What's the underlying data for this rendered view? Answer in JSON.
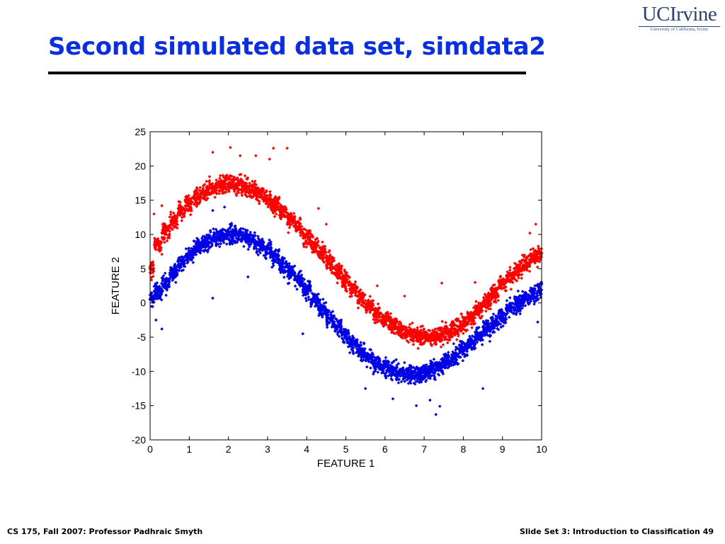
{
  "slide": {
    "title": "Second simulated data set, simdata2",
    "footer_left": "CS 175, Fall 2007: Professor Padhraic Smyth",
    "footer_right": "Slide Set 3: Introduction to Classification 49"
  },
  "logo": {
    "wordmark": "UCIrvine",
    "subtitle": "University of California, Irvine"
  },
  "colors": {
    "title": "#0a2ee0",
    "class_red": "#ff0000",
    "class_blue": "#0000e6",
    "logo": "#2b4370"
  },
  "chart_data": {
    "type": "scatter",
    "title": "",
    "xlabel": "FEATURE 1",
    "ylabel": "FEATURE 2",
    "xlim": [
      0,
      10
    ],
    "ylim": [
      -20,
      25
    ],
    "xticks": [
      0,
      1,
      2,
      3,
      4,
      5,
      6,
      7,
      8,
      9,
      10
    ],
    "yticks": [
      -20,
      -15,
      -10,
      -5,
      0,
      5,
      10,
      15,
      20,
      25
    ],
    "grid": false,
    "series": [
      {
        "color": "#ff0000",
        "points": [
          [
            0.0,
            5.0
          ],
          [
            0.2,
            8.5
          ],
          [
            0.4,
            10.5
          ],
          [
            0.6,
            12.0
          ],
          [
            0.8,
            13.5
          ],
          [
            1.0,
            14.5
          ],
          [
            1.2,
            15.5
          ],
          [
            1.4,
            16.2
          ],
          [
            1.6,
            16.8
          ],
          [
            1.8,
            17.2
          ],
          [
            2.0,
            17.5
          ],
          [
            2.2,
            17.3
          ],
          [
            2.4,
            17.0
          ],
          [
            2.6,
            16.6
          ],
          [
            2.8,
            16.0
          ],
          [
            3.0,
            15.2
          ],
          [
            3.2,
            14.3
          ],
          [
            3.4,
            13.3
          ],
          [
            3.6,
            12.2
          ],
          [
            3.8,
            11.0
          ],
          [
            4.0,
            9.8
          ],
          [
            4.2,
            8.5
          ],
          [
            4.4,
            7.2
          ],
          [
            4.6,
            5.8
          ],
          [
            4.8,
            4.5
          ],
          [
            5.0,
            3.2
          ],
          [
            5.2,
            1.9
          ],
          [
            5.4,
            0.7
          ],
          [
            5.6,
            -0.5
          ],
          [
            5.8,
            -1.5
          ],
          [
            6.0,
            -2.4
          ],
          [
            6.2,
            -3.2
          ],
          [
            6.4,
            -3.9
          ],
          [
            6.6,
            -4.4
          ],
          [
            6.8,
            -4.8
          ],
          [
            7.0,
            -5.0
          ],
          [
            7.2,
            -5.0
          ],
          [
            7.4,
            -4.8
          ],
          [
            7.6,
            -4.4
          ],
          [
            7.8,
            -3.8
          ],
          [
            8.0,
            -3.0
          ],
          [
            8.2,
            -2.1
          ],
          [
            8.4,
            -1.0
          ],
          [
            8.6,
            0.2
          ],
          [
            8.8,
            1.5
          ],
          [
            9.0,
            2.8
          ],
          [
            9.2,
            3.9
          ],
          [
            9.4,
            4.9
          ],
          [
            9.6,
            5.8
          ],
          [
            9.8,
            6.6
          ],
          [
            10.0,
            7.2
          ],
          [
            1.6,
            22.0
          ],
          [
            2.05,
            22.7
          ],
          [
            2.3,
            21.5
          ],
          [
            2.7,
            21.5
          ],
          [
            3.05,
            21.0
          ],
          [
            3.15,
            22.6
          ],
          [
            3.5,
            22.6
          ],
          [
            7.45,
            2.9
          ],
          [
            0.3,
            14.2
          ],
          [
            0.1,
            13.0
          ],
          [
            9.85,
            11.5
          ],
          [
            9.7,
            10.2
          ],
          [
            5.8,
            2.5
          ],
          [
            6.5,
            1.0
          ],
          [
            8.3,
            3.0
          ],
          [
            4.5,
            11.5
          ],
          [
            4.3,
            13.8
          ]
        ]
      },
      {
        "color": "#0000e6",
        "points": [
          [
            0.0,
            0.5
          ],
          [
            0.2,
            1.5
          ],
          [
            0.4,
            3.0
          ],
          [
            0.6,
            4.5
          ],
          [
            0.8,
            5.8
          ],
          [
            1.0,
            7.0
          ],
          [
            1.2,
            8.0
          ],
          [
            1.4,
            8.8
          ],
          [
            1.6,
            9.4
          ],
          [
            1.8,
            9.8
          ],
          [
            2.0,
            10.0
          ],
          [
            2.2,
            10.0
          ],
          [
            2.4,
            9.7
          ],
          [
            2.6,
            9.2
          ],
          [
            2.8,
            8.6
          ],
          [
            3.0,
            7.8
          ],
          [
            3.2,
            6.8
          ],
          [
            3.4,
            5.7
          ],
          [
            3.6,
            4.5
          ],
          [
            3.8,
            3.2
          ],
          [
            4.0,
            1.9
          ],
          [
            4.2,
            0.5
          ],
          [
            4.4,
            -0.9
          ],
          [
            4.6,
            -2.2
          ],
          [
            4.8,
            -3.5
          ],
          [
            5.0,
            -4.8
          ],
          [
            5.2,
            -6.0
          ],
          [
            5.4,
            -7.1
          ],
          [
            5.6,
            -8.0
          ],
          [
            5.8,
            -8.8
          ],
          [
            6.0,
            -9.4
          ],
          [
            6.2,
            -9.9
          ],
          [
            6.4,
            -10.2
          ],
          [
            6.6,
            -10.4
          ],
          [
            6.8,
            -10.4
          ],
          [
            7.0,
            -10.2
          ],
          [
            7.2,
            -9.8
          ],
          [
            7.4,
            -9.2
          ],
          [
            7.6,
            -8.5
          ],
          [
            7.8,
            -7.7
          ],
          [
            8.0,
            -6.8
          ],
          [
            8.2,
            -5.8
          ],
          [
            8.4,
            -4.8
          ],
          [
            8.6,
            -3.8
          ],
          [
            8.8,
            -2.8
          ],
          [
            9.0,
            -1.9
          ],
          [
            9.2,
            -1.0
          ],
          [
            9.4,
            -0.2
          ],
          [
            9.6,
            0.6
          ],
          [
            9.8,
            1.3
          ],
          [
            10.0,
            1.9
          ],
          [
            7.3,
            -16.3
          ],
          [
            6.8,
            -15.0
          ],
          [
            7.15,
            -14.2
          ],
          [
            7.4,
            -15.1
          ],
          [
            0.3,
            -3.8
          ],
          [
            0.15,
            -2.5
          ],
          [
            1.6,
            0.7
          ],
          [
            2.5,
            3.8
          ],
          [
            3.9,
            -4.5
          ],
          [
            5.5,
            -12.5
          ],
          [
            6.2,
            -14.0
          ],
          [
            8.5,
            -12.5
          ],
          [
            9.9,
            -2.8
          ],
          [
            1.6,
            13.5
          ],
          [
            1.9,
            14.0
          ]
        ]
      }
    ]
  }
}
